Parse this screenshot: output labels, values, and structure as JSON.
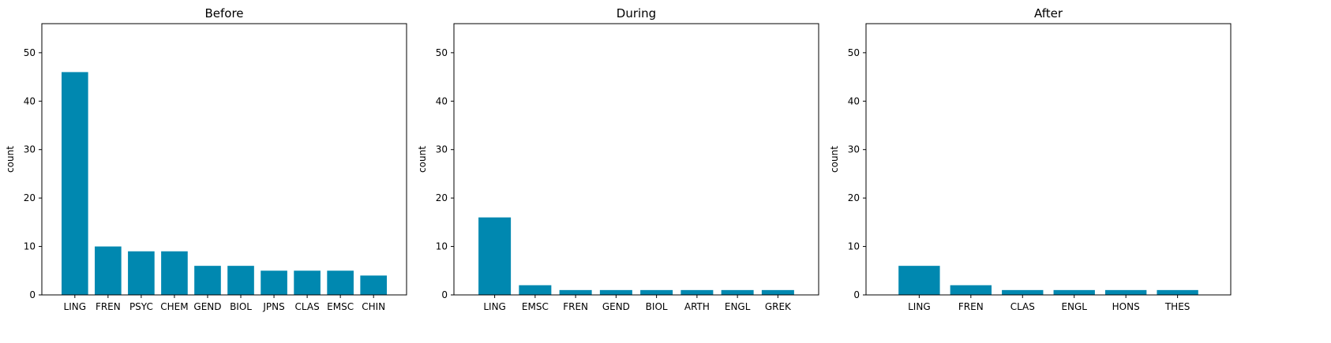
{
  "chart_data": [
    {
      "type": "bar",
      "title": "Before",
      "xlabel": "",
      "ylabel": "count",
      "ylim": [
        0,
        56
      ],
      "yticks": [
        0,
        10,
        20,
        30,
        40,
        50
      ],
      "grid": false,
      "categories": [
        "LING",
        "FREN",
        "PSYC",
        "CHEM",
        "GEND",
        "BIOL",
        "JPNS",
        "CLAS",
        "EMSC",
        "CHIN"
      ],
      "values": [
        46,
        10,
        9,
        9,
        6,
        6,
        5,
        5,
        5,
        4
      ],
      "color": "#0088b0"
    },
    {
      "type": "bar",
      "title": "During",
      "xlabel": "",
      "ylabel": "count",
      "ylim": [
        0,
        56
      ],
      "yticks": [
        0,
        10,
        20,
        30,
        40,
        50
      ],
      "grid": false,
      "categories": [
        "LING",
        "EMSC",
        "FREN",
        "GEND",
        "BIOL",
        "ARTH",
        "ENGL",
        "GREK"
      ],
      "values": [
        16,
        2,
        1,
        1,
        1,
        1,
        1,
        1
      ],
      "color": "#0088b0"
    },
    {
      "type": "bar",
      "title": "After",
      "xlabel": "",
      "ylabel": "count",
      "ylim": [
        0,
        56
      ],
      "yticks": [
        0,
        10,
        20,
        30,
        40,
        50
      ],
      "grid": false,
      "categories": [
        "LING",
        "FREN",
        "CLAS",
        "ENGL",
        "HONS",
        "THES"
      ],
      "values": [
        6,
        2,
        1,
        1,
        1,
        1
      ],
      "color": "#0088b0"
    }
  ]
}
